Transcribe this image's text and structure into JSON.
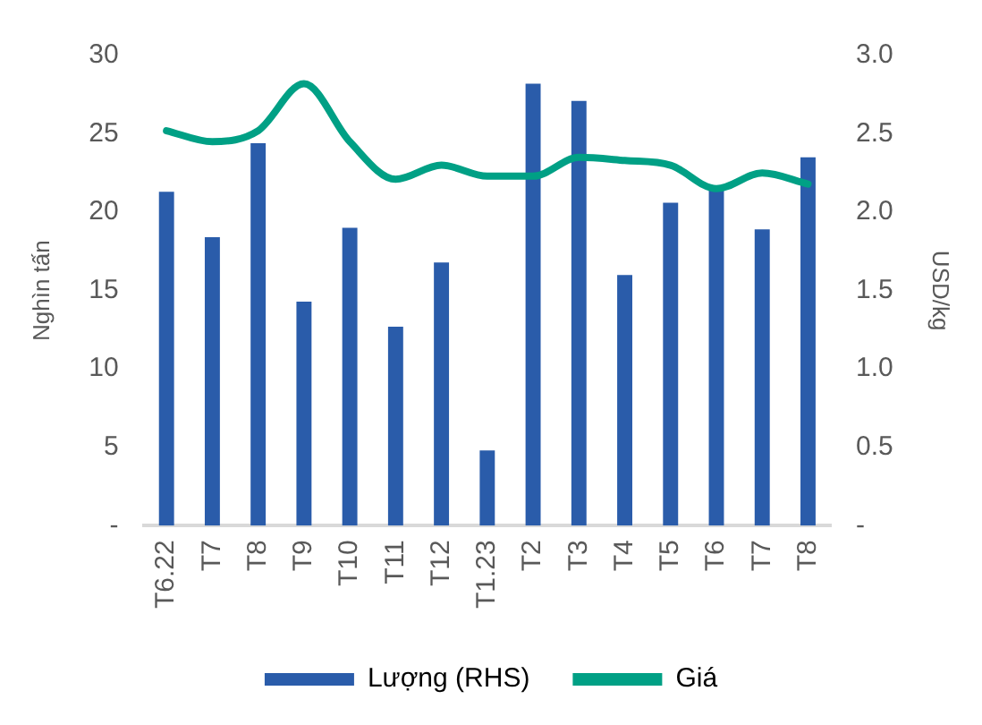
{
  "chart_data": {
    "type": "bar",
    "ylabel": "Nghìn tấn",
    "y2label": "USD/kg",
    "categories": [
      "T6.22",
      "T7",
      "T8",
      "T9",
      "T10",
      "T11",
      "T12",
      "T1.23",
      "T2",
      "T3",
      "T4",
      "T5",
      "T6",
      "T7",
      "T8"
    ],
    "series": [
      {
        "name": "Lượng (RHS)",
        "color": "#2a5caa",
        "values": [
          21.3,
          18.4,
          24.4,
          14.3,
          19.0,
          12.7,
          16.8,
          4.8,
          28.2,
          27.1,
          16.0,
          20.6,
          21.6,
          18.9,
          23.5
        ]
      },
      {
        "name": "Giá",
        "type": "line",
        "axis": "y2",
        "color": "#00a085",
        "values": [
          2.52,
          2.45,
          2.52,
          2.82,
          2.45,
          2.21,
          2.3,
          2.23,
          2.23,
          2.35,
          2.33,
          2.3,
          2.15,
          2.25,
          2.18
        ]
      }
    ],
    "ylim": [
      0,
      30
    ],
    "yticks": [
      {
        "value": 0,
        "label": "-"
      },
      5,
      10,
      15,
      20,
      25,
      30
    ],
    "y2lim": [
      0,
      3
    ],
    "y2ticks": [
      {
        "value": 0,
        "label": "-"
      },
      {
        "value": 0.5,
        "label": "0.5"
      },
      {
        "value": 1,
        "label": "1.0"
      },
      {
        "value": 1.5,
        "label": "1.5"
      },
      {
        "value": 2,
        "label": "2.0"
      },
      {
        "value": 2.5,
        "label": "2.5"
      },
      {
        "value": 3,
        "label": "3.0"
      }
    ],
    "grid": false,
    "legend": "bottom",
    "marker": "none"
  }
}
